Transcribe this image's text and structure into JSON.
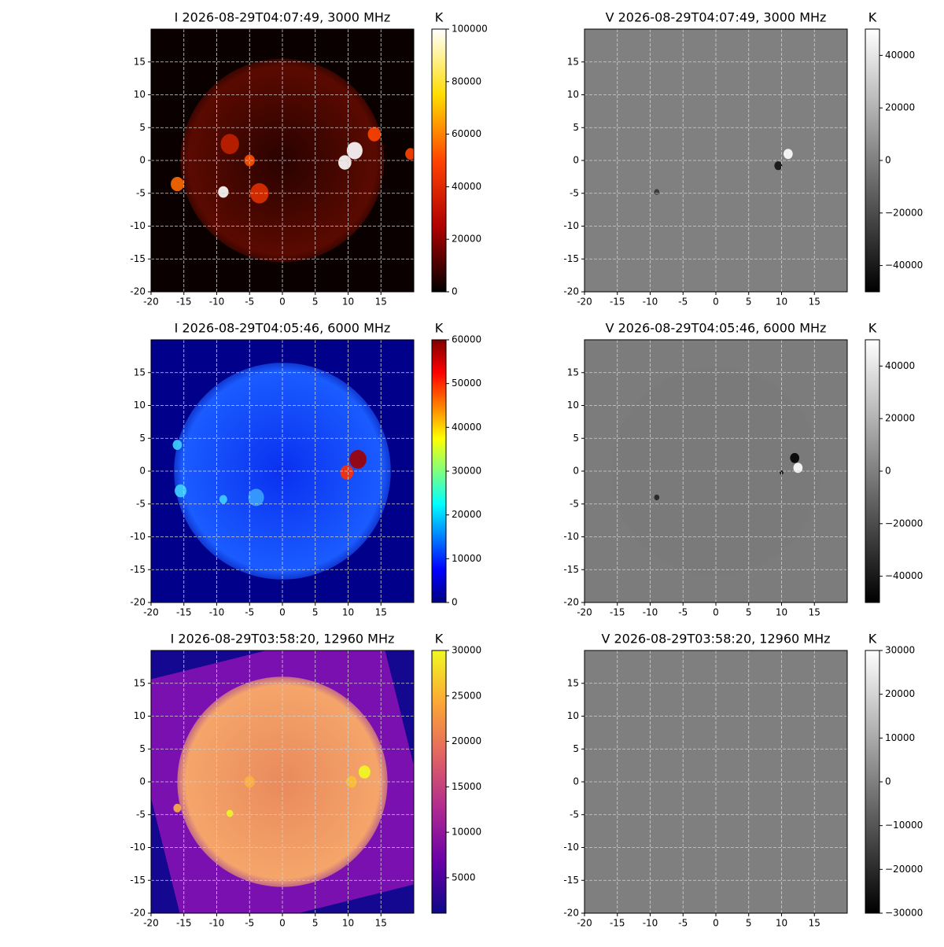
{
  "chart_data": [
    {
      "type": "image",
      "title": "I 2026-08-29T04:07:49, 3000 MHz",
      "xlim": [
        -20,
        20
      ],
      "ylim": [
        -20,
        20
      ],
      "xticks": [
        -20,
        -15,
        -10,
        -5,
        0,
        5,
        10,
        15
      ],
      "yticks": [
        -20,
        -15,
        -10,
        -5,
        0,
        5,
        10,
        15
      ],
      "grid": true,
      "colorbar": {
        "label": "K",
        "colormap": [
          "#000000",
          "#b00000",
          "#ff4400",
          "#ffdd00",
          "#ffffff"
        ],
        "clim": [
          0,
          100000
        ],
        "ticks": [
          0,
          20000,
          40000,
          60000,
          80000,
          100000
        ]
      }
    },
    {
      "type": "image",
      "title": "V 2026-08-29T04:07:49, 3000 MHz",
      "xlim": [
        -20,
        20
      ],
      "ylim": [
        -20,
        20
      ],
      "xticks": [
        -20,
        -15,
        -10,
        -5,
        0,
        5,
        10,
        15
      ],
      "yticks": [
        -20,
        -15,
        -10,
        -5,
        0,
        5,
        10,
        15
      ],
      "grid": true,
      "colorbar": {
        "label": "K",
        "colormap": [
          "#000000",
          "#ffffff"
        ],
        "clim": [
          -50000,
          50000
        ],
        "ticks": [
          {
            "value": -40000,
            "label": "−40000"
          },
          {
            "value": -20000,
            "label": "−20000"
          },
          0,
          20000,
          40000
        ]
      }
    },
    {
      "type": "image",
      "title": "I 2026-08-29T04:05:46, 6000 MHz",
      "xlim": [
        -20,
        20
      ],
      "ylim": [
        -20,
        20
      ],
      "xticks": [
        -20,
        -15,
        -10,
        -5,
        0,
        5,
        10,
        15
      ],
      "yticks": [
        -20,
        -15,
        -10,
        -5,
        0,
        5,
        10,
        15
      ],
      "grid": true,
      "colorbar": {
        "label": "K",
        "colormap": [
          "#00007f",
          "#0000ff",
          "#007fff",
          "#00ffff",
          "#7fff7f",
          "#ffff00",
          "#ff7f00",
          "#ff0000",
          "#7f0000"
        ],
        "clim": [
          0,
          60000
        ],
        "ticks": [
          0,
          10000,
          20000,
          30000,
          40000,
          50000,
          60000
        ]
      }
    },
    {
      "type": "image",
      "title": "V 2026-08-29T04:05:46, 6000 MHz",
      "xlim": [
        -20,
        20
      ],
      "ylim": [
        -20,
        20
      ],
      "xticks": [
        -20,
        -15,
        -10,
        -5,
        0,
        5,
        10,
        15
      ],
      "yticks": [
        -20,
        -15,
        -10,
        -5,
        0,
        5,
        10,
        15
      ],
      "grid": true,
      "colorbar": {
        "label": "K",
        "colormap": [
          "#000000",
          "#ffffff"
        ],
        "clim": [
          -50000,
          50000
        ],
        "ticks": [
          {
            "value": -40000,
            "label": "−40000"
          },
          {
            "value": -20000,
            "label": "−20000"
          },
          0,
          20000,
          40000
        ]
      }
    },
    {
      "type": "image",
      "title": "I 2026-08-29T03:58:20, 12960 MHz",
      "xlim": [
        -20,
        20
      ],
      "ylim": [
        -20,
        20
      ],
      "xticks": [
        -20,
        -15,
        -10,
        -5,
        0,
        5,
        10,
        15
      ],
      "yticks": [
        -20,
        -15,
        -10,
        -5,
        0,
        5,
        10,
        15
      ],
      "grid": true,
      "colorbar": {
        "label": "K",
        "colormap": [
          "#0d0887",
          "#6a00a8",
          "#b12a90",
          "#e16462",
          "#fca636",
          "#f0f921"
        ],
        "clim": [
          1100,
          30000
        ],
        "ticks": [
          5000,
          10000,
          15000,
          20000,
          25000,
          30000
        ]
      }
    },
    {
      "type": "image",
      "title": "V 2026-08-29T03:58:20, 12960 MHz",
      "xlim": [
        -20,
        20
      ],
      "ylim": [
        -20,
        20
      ],
      "xticks": [
        -20,
        -15,
        -10,
        -5,
        0,
        5,
        10,
        15
      ],
      "yticks": [
        -20,
        -15,
        -10,
        -5,
        0,
        5,
        10,
        15
      ],
      "grid": true,
      "colorbar": {
        "label": "K",
        "colormap": [
          "#000000",
          "#ffffff"
        ],
        "clim": [
          -30000,
          30000
        ],
        "ticks": [
          {
            "value": -30000,
            "label": "−30000"
          },
          {
            "value": -20000,
            "label": "−20000"
          },
          {
            "value": -10000,
            "label": "−10000"
          },
          0,
          10000,
          20000,
          30000
        ]
      }
    }
  ]
}
